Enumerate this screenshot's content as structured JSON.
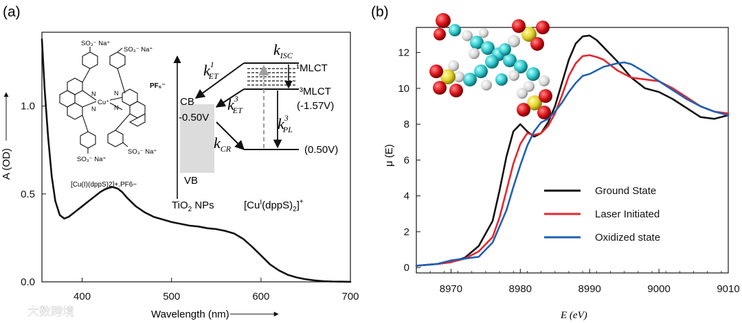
{
  "watermark": "大数跨境",
  "chart_data": [
    {
      "panel": "(a)",
      "type": "line",
      "xlabel": "Wavelength (nm)",
      "ylabel": "A (OD)",
      "xlim": [
        355,
        700
      ],
      "ylim": [
        0,
        1.42
      ],
      "x_ticks": [
        400,
        500,
        600,
        700
      ],
      "y_ticks": [
        "0.0",
        "0.5",
        "1.0"
      ],
      "y_tick_values": [
        0.0,
        0.5,
        1.0
      ],
      "series": [
        {
          "name": "absorbance",
          "color": "#111111",
          "x": [
            355,
            358,
            362,
            366,
            370,
            375,
            380,
            385,
            390,
            395,
            400,
            405,
            410,
            415,
            420,
            425,
            430,
            434,
            440,
            445,
            450,
            455,
            460,
            470,
            480,
            490,
            500,
            510,
            520,
            530,
            540,
            550,
            560,
            570,
            580,
            590,
            600,
            610,
            620,
            630,
            640,
            650,
            660,
            670,
            680,
            690,
            700
          ],
          "y": [
            1.38,
            1.1,
            0.82,
            0.6,
            0.46,
            0.38,
            0.36,
            0.37,
            0.39,
            0.41,
            0.43,
            0.45,
            0.47,
            0.49,
            0.51,
            0.525,
            0.535,
            0.54,
            0.53,
            0.51,
            0.48,
            0.455,
            0.43,
            0.395,
            0.37,
            0.355,
            0.34,
            0.33,
            0.32,
            0.315,
            0.305,
            0.3,
            0.29,
            0.275,
            0.245,
            0.2,
            0.15,
            0.1,
            0.065,
            0.04,
            0.025,
            0.015,
            0.008,
            0.004,
            0.002,
            0.001,
            0.0
          ]
        }
      ],
      "inset": {
        "complex_label": "[Cu(I)(dppS)2]+.PF6−",
        "structure_labels": {
          "so3na": "SO₃⁻ Na⁺",
          "pf6": "PF₆⁻",
          "cu": "Cu⁺",
          "n": "N"
        },
        "energy_diagram": {
          "k_isc": "k",
          "k_isc_sub": "ISC",
          "mlct1": "¹MLCT",
          "k_et1": "k",
          "k_et1_sup": "1",
          "k_et1_sub": "ET",
          "mlct3": "³MLCT",
          "mlct3_potential": "(-1.57V)",
          "cb": "CB",
          "cb_potential": "-0.50V",
          "k_et3": "k",
          "k_et3_sup": "3",
          "k_et3_sub": "ET",
          "k_pl3": "k",
          "k_pl3_sup": "3",
          "k_pl3_sub": "PL",
          "k_cr": "k",
          "k_cr_sub": "CR",
          "ground_potential": "(0.50V)",
          "vb": "VB",
          "tio2": "TiO",
          "tio2_sub": "2",
          "tio2_suffix": " NPs",
          "cu_complex_a": "[Cu",
          "cu_complex_sup": "I",
          "cu_complex_b": "(dppS)",
          "cu_complex_sub": "2",
          "cu_complex_c": "]",
          "cu_complex_sup2": "+"
        }
      }
    },
    {
      "panel": "(b)",
      "type": "line",
      "xlabel": "E (eV)",
      "ylabel": "μ (E)",
      "xlim": [
        8965,
        9010
      ],
      "ylim": [
        -0.3,
        13.4
      ],
      "x_ticks": [
        8970,
        8980,
        8990,
        9000,
        9010
      ],
      "y_ticks": [
        0,
        2,
        4,
        6,
        8,
        10,
        12
      ],
      "legend_position": "center-right",
      "series": [
        {
          "name": "Ground State",
          "color": "#111111",
          "x": [
            8965,
            8968,
            8970,
            8972,
            8974,
            8976,
            8977,
            8978,
            8979,
            8980,
            8981,
            8982,
            8983,
            8984,
            8985,
            8986,
            8987,
            8988,
            8989,
            8990,
            8991,
            8992,
            8994,
            8996,
            8998,
            9000,
            9002,
            9004,
            9006,
            9008,
            9010
          ],
          "y": [
            0.1,
            0.2,
            0.3,
            0.55,
            1.2,
            2.6,
            4.3,
            6.2,
            7.6,
            8.0,
            7.6,
            7.3,
            7.5,
            8.1,
            9.0,
            10.3,
            11.6,
            12.5,
            12.9,
            12.95,
            12.7,
            12.3,
            11.5,
            10.6,
            10.0,
            9.8,
            9.4,
            8.9,
            8.4,
            8.3,
            8.5
          ]
        },
        {
          "name": "Laser Initiated",
          "color": "#e8252b",
          "x": [
            8965,
            8968,
            8970,
            8972,
            8974,
            8976,
            8977,
            8978,
            8979,
            8980,
            8981,
            8982,
            8983,
            8984,
            8985,
            8986,
            8987,
            8988,
            8989,
            8990,
            8991,
            8992,
            8994,
            8996,
            8998,
            9000,
            9002,
            9004,
            9006,
            9008,
            9010
          ],
          "y": [
            0.1,
            0.2,
            0.3,
            0.5,
            0.9,
            1.7,
            2.8,
            4.3,
            5.8,
            6.9,
            7.5,
            7.4,
            7.5,
            7.9,
            8.6,
            9.6,
            10.7,
            11.4,
            11.8,
            11.85,
            11.75,
            11.6,
            11.0,
            10.6,
            10.5,
            10.4,
            10.0,
            9.5,
            9.0,
            8.7,
            8.6
          ]
        },
        {
          "name": "Oxidized state",
          "color": "#1f5fb5",
          "x": [
            8965,
            8968,
            8970,
            8972,
            8974,
            8976,
            8978,
            8979,
            8980,
            8981,
            8982,
            8983,
            8984,
            8985,
            8986,
            8987,
            8988,
            8989,
            8990,
            8992,
            8994,
            8995,
            8996,
            8998,
            9000,
            9002,
            9004,
            9006,
            9008,
            9010
          ],
          "y": [
            0.1,
            0.2,
            0.4,
            0.5,
            0.6,
            1.4,
            3.2,
            4.5,
            5.7,
            6.8,
            7.6,
            8.1,
            8.3,
            8.7,
            9.2,
            9.8,
            10.3,
            10.7,
            10.8,
            11.2,
            11.4,
            11.45,
            11.35,
            10.9,
            10.4,
            9.9,
            9.4,
            9.0,
            8.7,
            8.5
          ]
        }
      ],
      "inset": {
        "description": "space-filling molecular model"
      }
    }
  ]
}
